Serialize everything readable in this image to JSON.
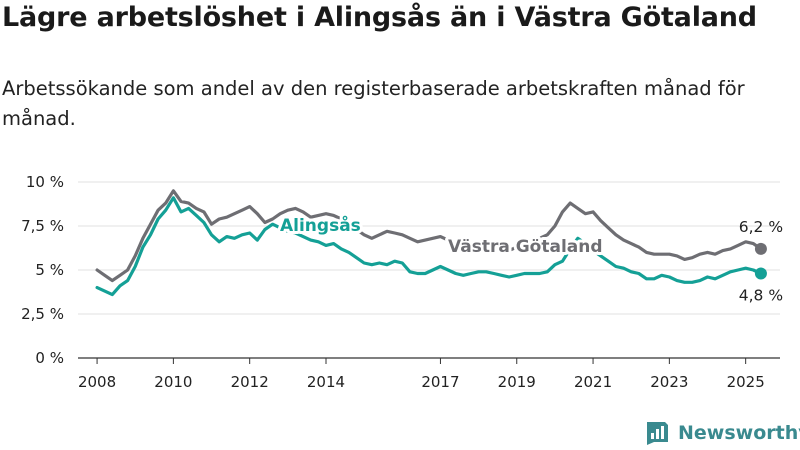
{
  "header": {
    "title": "Lägre arbetslöshet i Alingsås än i Västra Götaland",
    "subtitle": "Arbetssökande som andel av den registerbaserade arbetskraften månad för månad."
  },
  "brand": {
    "name": "Newsworthy",
    "icon": "newsworthy-logo-icon",
    "color": "#3a8a8f"
  },
  "chart_data": {
    "type": "line",
    "title": "Lägre arbetslöshet i Alingsås än i Västra Götaland",
    "subtitle": "Arbetssökande som andel av den registerbaserade arbetskraften månad för månad.",
    "xlim": [
      2007.5,
      2025.9
    ],
    "ylim": [
      0,
      10
    ],
    "x_ticks": [
      2008,
      2010,
      2012,
      2014,
      2017,
      2019,
      2021,
      2023,
      2025
    ],
    "x_tick_labels": [
      "2008",
      "2010",
      "2012",
      "2014",
      "2017",
      "2019",
      "2021",
      "2023",
      "2025"
    ],
    "y_ticks": [
      0,
      2.5,
      5,
      7.5,
      10
    ],
    "y_tick_labels": [
      "0 %",
      "2,5 %",
      "5 %",
      "7,5 %",
      "10 %"
    ],
    "grid": "horizontal",
    "series": [
      {
        "name": "Västra Götaland",
        "color": "#6e6e73",
        "end_label": "6,2 %",
        "points": [
          [
            2008.0,
            5.0
          ],
          [
            2008.2,
            4.7
          ],
          [
            2008.4,
            4.4
          ],
          [
            2008.6,
            4.7
          ],
          [
            2008.8,
            5.0
          ],
          [
            2009.0,
            5.8
          ],
          [
            2009.2,
            6.8
          ],
          [
            2009.4,
            7.6
          ],
          [
            2009.6,
            8.4
          ],
          [
            2009.8,
            8.8
          ],
          [
            2010.0,
            9.5
          ],
          [
            2010.2,
            8.9
          ],
          [
            2010.4,
            8.8
          ],
          [
            2010.6,
            8.5
          ],
          [
            2010.8,
            8.3
          ],
          [
            2011.0,
            7.6
          ],
          [
            2011.2,
            7.9
          ],
          [
            2011.4,
            8.0
          ],
          [
            2011.6,
            8.2
          ],
          [
            2011.8,
            8.4
          ],
          [
            2012.0,
            8.6
          ],
          [
            2012.2,
            8.2
          ],
          [
            2012.4,
            7.7
          ],
          [
            2012.6,
            7.9
          ],
          [
            2012.8,
            8.2
          ],
          [
            2013.0,
            8.4
          ],
          [
            2013.2,
            8.5
          ],
          [
            2013.4,
            8.3
          ],
          [
            2013.6,
            8.0
          ],
          [
            2013.8,
            8.1
          ],
          [
            2014.0,
            8.2
          ],
          [
            2014.2,
            8.1
          ],
          [
            2014.4,
            7.9
          ],
          [
            2014.6,
            7.6
          ],
          [
            2014.8,
            7.3
          ],
          [
            2015.0,
            7.0
          ],
          [
            2015.2,
            6.8
          ],
          [
            2015.4,
            7.0
          ],
          [
            2015.6,
            7.2
          ],
          [
            2015.8,
            7.1
          ],
          [
            2016.0,
            7.0
          ],
          [
            2016.2,
            6.8
          ],
          [
            2016.4,
            6.6
          ],
          [
            2016.6,
            6.7
          ],
          [
            2016.8,
            6.8
          ],
          [
            2017.0,
            6.9
          ],
          [
            2017.2,
            6.7
          ],
          [
            2017.4,
            6.4
          ],
          [
            2017.6,
            6.3
          ],
          [
            2017.8,
            6.3
          ],
          [
            2018.0,
            6.4
          ],
          [
            2018.2,
            6.3
          ],
          [
            2018.4,
            6.2
          ],
          [
            2018.6,
            6.2
          ],
          [
            2018.8,
            6.1
          ],
          [
            2019.0,
            6.3
          ],
          [
            2019.2,
            6.4
          ],
          [
            2019.4,
            6.6
          ],
          [
            2019.6,
            6.8
          ],
          [
            2019.8,
            7.0
          ],
          [
            2020.0,
            7.5
          ],
          [
            2020.2,
            8.3
          ],
          [
            2020.4,
            8.8
          ],
          [
            2020.6,
            8.5
          ],
          [
            2020.8,
            8.2
          ],
          [
            2021.0,
            8.3
          ],
          [
            2021.2,
            7.8
          ],
          [
            2021.4,
            7.4
          ],
          [
            2021.6,
            7.0
          ],
          [
            2021.8,
            6.7
          ],
          [
            2022.0,
            6.5
          ],
          [
            2022.2,
            6.3
          ],
          [
            2022.4,
            6.0
          ],
          [
            2022.6,
            5.9
          ],
          [
            2022.8,
            5.9
          ],
          [
            2023.0,
            5.9
          ],
          [
            2023.2,
            5.8
          ],
          [
            2023.4,
            5.6
          ],
          [
            2023.6,
            5.7
          ],
          [
            2023.8,
            5.9
          ],
          [
            2024.0,
            6.0
          ],
          [
            2024.2,
            5.9
          ],
          [
            2024.4,
            6.1
          ],
          [
            2024.6,
            6.2
          ],
          [
            2024.8,
            6.4
          ],
          [
            2025.0,
            6.6
          ],
          [
            2025.2,
            6.5
          ],
          [
            2025.4,
            6.2
          ]
        ]
      },
      {
        "name": "Alingsås",
        "color": "#14a096",
        "end_label": "4,8 %",
        "points": [
          [
            2008.0,
            4.0
          ],
          [
            2008.2,
            3.8
          ],
          [
            2008.4,
            3.6
          ],
          [
            2008.6,
            4.1
          ],
          [
            2008.8,
            4.4
          ],
          [
            2009.0,
            5.2
          ],
          [
            2009.2,
            6.3
          ],
          [
            2009.4,
            7.0
          ],
          [
            2009.6,
            7.9
          ],
          [
            2009.8,
            8.4
          ],
          [
            2010.0,
            9.1
          ],
          [
            2010.2,
            8.3
          ],
          [
            2010.4,
            8.5
          ],
          [
            2010.6,
            8.1
          ],
          [
            2010.8,
            7.7
          ],
          [
            2011.0,
            7.0
          ],
          [
            2011.2,
            6.6
          ],
          [
            2011.4,
            6.9
          ],
          [
            2011.6,
            6.8
          ],
          [
            2011.8,
            7.0
          ],
          [
            2012.0,
            7.1
          ],
          [
            2012.2,
            6.7
          ],
          [
            2012.4,
            7.3
          ],
          [
            2012.6,
            7.6
          ],
          [
            2012.8,
            7.4
          ],
          [
            2013.0,
            7.2
          ],
          [
            2013.2,
            7.1
          ],
          [
            2013.4,
            6.9
          ],
          [
            2013.6,
            6.7
          ],
          [
            2013.8,
            6.6
          ],
          [
            2014.0,
            6.4
          ],
          [
            2014.2,
            6.5
          ],
          [
            2014.4,
            6.2
          ],
          [
            2014.6,
            6.0
          ],
          [
            2014.8,
            5.7
          ],
          [
            2015.0,
            5.4
          ],
          [
            2015.2,
            5.3
          ],
          [
            2015.4,
            5.4
          ],
          [
            2015.6,
            5.3
          ],
          [
            2015.8,
            5.5
          ],
          [
            2016.0,
            5.4
          ],
          [
            2016.2,
            4.9
          ],
          [
            2016.4,
            4.8
          ],
          [
            2016.6,
            4.8
          ],
          [
            2016.8,
            5.0
          ],
          [
            2017.0,
            5.2
          ],
          [
            2017.2,
            5.0
          ],
          [
            2017.4,
            4.8
          ],
          [
            2017.6,
            4.7
          ],
          [
            2017.8,
            4.8
          ],
          [
            2018.0,
            4.9
          ],
          [
            2018.2,
            4.9
          ],
          [
            2018.4,
            4.8
          ],
          [
            2018.6,
            4.7
          ],
          [
            2018.8,
            4.6
          ],
          [
            2019.0,
            4.7
          ],
          [
            2019.2,
            4.8
          ],
          [
            2019.4,
            4.8
          ],
          [
            2019.6,
            4.8
          ],
          [
            2019.8,
            4.9
          ],
          [
            2020.0,
            5.3
          ],
          [
            2020.2,
            5.5
          ],
          [
            2020.4,
            6.2
          ],
          [
            2020.6,
            6.8
          ],
          [
            2020.8,
            6.5
          ],
          [
            2021.0,
            6.1
          ],
          [
            2021.2,
            5.8
          ],
          [
            2021.4,
            5.5
          ],
          [
            2021.6,
            5.2
          ],
          [
            2021.8,
            5.1
          ],
          [
            2022.0,
            4.9
          ],
          [
            2022.2,
            4.8
          ],
          [
            2022.4,
            4.5
          ],
          [
            2022.6,
            4.5
          ],
          [
            2022.8,
            4.7
          ],
          [
            2023.0,
            4.6
          ],
          [
            2023.2,
            4.4
          ],
          [
            2023.4,
            4.3
          ],
          [
            2023.6,
            4.3
          ],
          [
            2023.8,
            4.4
          ],
          [
            2024.0,
            4.6
          ],
          [
            2024.2,
            4.5
          ],
          [
            2024.4,
            4.7
          ],
          [
            2024.6,
            4.9
          ],
          [
            2024.8,
            5.0
          ],
          [
            2025.0,
            5.1
          ],
          [
            2025.2,
            5.0
          ],
          [
            2025.4,
            4.8
          ]
        ]
      }
    ]
  }
}
